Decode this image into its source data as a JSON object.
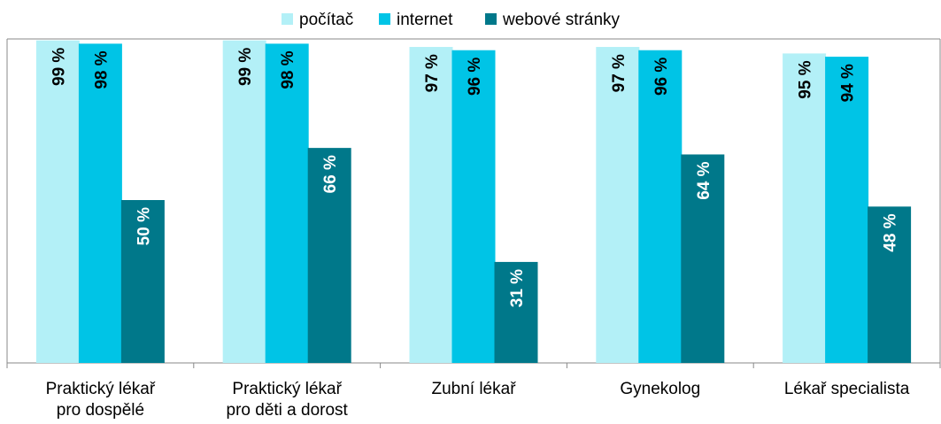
{
  "chart_data": {
    "type": "bar",
    "categories": [
      "Praktický lékař\npro dospělé",
      "Praktický lékař\npro děti a dorost",
      "Zubní lékař",
      "Gynekolog",
      "Lékař specialista"
    ],
    "series": [
      {
        "name": "počítač",
        "color": "#b3f0f7",
        "values": [
          99,
          99,
          97,
          97,
          95
        ],
        "value_labels": [
          "99 %",
          "99 %",
          "97 %",
          "97 %",
          "95 %"
        ]
      },
      {
        "name": "internet",
        "color": "#00c4e6",
        "values": [
          98,
          98,
          96,
          96,
          94
        ],
        "value_labels": [
          "98 %",
          "98 %",
          "96 %",
          "96 %",
          "94 %"
        ]
      },
      {
        "name": "webové stránky",
        "color": "#00788a",
        "values": [
          50,
          66,
          31,
          64,
          48
        ],
        "value_labels": [
          "50 %",
          "66 %",
          "31 %",
          "64 %",
          "48 %"
        ]
      }
    ],
    "ylim": [
      0,
      100
    ]
  }
}
